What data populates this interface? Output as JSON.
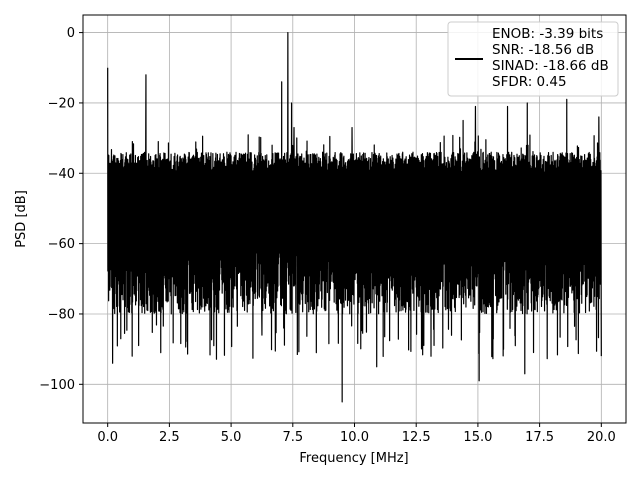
{
  "chart_data": {
    "type": "line",
    "title": "",
    "xlabel": "Frequency [MHz]",
    "ylabel": "PSD [dB]",
    "xlim": [
      -1.0,
      21.0
    ],
    "ylim": [
      -111,
      5
    ],
    "xticks": [
      0.0,
      2.5,
      5.0,
      7.5,
      10.0,
      12.5,
      15.0,
      17.5,
      20.0
    ],
    "xtick_labels": [
      "0.0",
      "2.5",
      "5.0",
      "7.5",
      "10.0",
      "12.5",
      "15.0",
      "17.5",
      "20.0"
    ],
    "yticks": [
      0,
      -20,
      -40,
      -60,
      -80,
      -100
    ],
    "ytick_labels": [
      "0",
      "−20",
      "−40",
      "−60",
      "−80",
      "−100"
    ],
    "grid": true,
    "legend_position": "top-right",
    "legend_lines": [
      "ENOB: -3.39 bits",
      "SNR: -18.56 dB",
      "SINAD: -18.66 dB",
      "SFDR: 0.45"
    ],
    "series": [
      {
        "color": "#000000",
        "description_x_range": [
          0.0,
          20.0
        ],
        "noise_floor_band": [
          -75,
          -38
        ],
        "spurs": [
          {
            "x": 0.0,
            "y": -10
          },
          {
            "x": 0.15,
            "y": -36
          },
          {
            "x": 1.0,
            "y": -31
          },
          {
            "x": 1.55,
            "y": -12
          },
          {
            "x": 2.05,
            "y": -31
          },
          {
            "x": 7.05,
            "y": -14
          },
          {
            "x": 7.3,
            "y": 0
          },
          {
            "x": 7.45,
            "y": -20
          },
          {
            "x": 7.55,
            "y": -27
          },
          {
            "x": 9.9,
            "y": -27
          },
          {
            "x": 14.4,
            "y": -25
          },
          {
            "x": 14.9,
            "y": -21
          },
          {
            "x": 16.2,
            "y": -21
          },
          {
            "x": 17.0,
            "y": -20
          },
          {
            "x": 18.6,
            "y": -19
          },
          {
            "x": 19.9,
            "y": -24
          }
        ],
        "dips": [
          {
            "x": 0.2,
            "y": -94
          },
          {
            "x": 2.15,
            "y": -91
          },
          {
            "x": 4.3,
            "y": -89
          },
          {
            "x": 6.25,
            "y": -86
          },
          {
            "x": 9.5,
            "y": -105
          },
          {
            "x": 10.9,
            "y": -95
          },
          {
            "x": 15.05,
            "y": -99
          },
          {
            "x": 16.9,
            "y": -97
          },
          {
            "x": 20.0,
            "y": -92
          }
        ]
      }
    ]
  }
}
